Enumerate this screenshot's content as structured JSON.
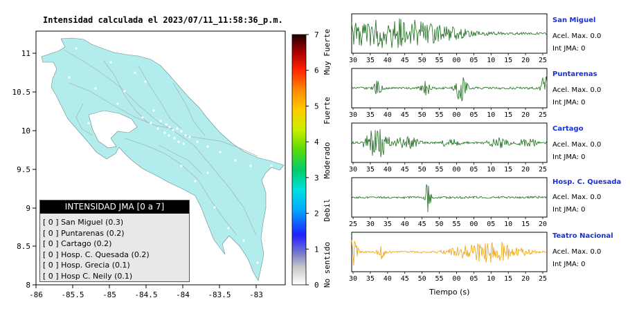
{
  "map": {
    "title": "Intensidad calculada el 2023/07/11_11:58:36_p.m.",
    "lon_ticks": [
      "-86",
      "-85.5",
      "-85",
      "-84.5",
      "-84",
      "-83.5",
      "-83"
    ],
    "lat_ticks": [
      "11",
      "10.5",
      "10",
      "9.5",
      "9",
      "8.5",
      "8"
    ],
    "land_color": "#b2ecec",
    "sea_color": "#ffffff"
  },
  "colorbar": {
    "ticks": [
      "0",
      "1",
      "2",
      "3",
      "4",
      "5",
      "6",
      "7"
    ],
    "categories": [
      "No sentido",
      "Debil",
      "Moderado",
      "Fuerte",
      "Muy Fuerte"
    ]
  },
  "legend": {
    "title": "INTENSIDAD JMA [0 a 7]",
    "items": [
      {
        "label": "[ 0 ]  San Miguel (0.3)"
      },
      {
        "label": "[ 0 ]  Puntarenas (0.2)"
      },
      {
        "label": "[ 0 ]  Cartago (0.2)"
      },
      {
        "label": "[ 0 ]  Hosp. C. Quesada (0.2)"
      },
      {
        "label": "[ 0 ]  Hosp. Grecia (0.1)"
      },
      {
        "label": "[ 0 ]  Hosp C. Neily (0.1)"
      }
    ]
  },
  "chart_data": [
    {
      "type": "heatmap",
      "title": "Intensidad calculada el 2023/07/11_11:58:36_p.m.",
      "xlabel": "",
      "ylabel": "",
      "xlim": [
        -86,
        -82.6
      ],
      "ylim": [
        8,
        11.3
      ],
      "colorbar": {
        "min": 0,
        "max": 7,
        "labels": [
          "No sentido",
          "Debil",
          "Moderado",
          "Fuerte",
          "Muy Fuerte"
        ]
      },
      "stations": [
        {
          "name": "San Miguel",
          "jma": 0,
          "intensity": 0.3
        },
        {
          "name": "Puntarenas",
          "jma": 0,
          "intensity": 0.2
        },
        {
          "name": "Cartago",
          "jma": 0,
          "intensity": 0.2
        },
        {
          "name": "Hosp. C. Quesada",
          "jma": 0,
          "intensity": 0.2
        },
        {
          "name": "Hosp. Grecia",
          "jma": 0,
          "intensity": 0.1
        },
        {
          "name": "Hosp C. Neily",
          "jma": 0,
          "intensity": 0.1
        }
      ]
    },
    {
      "type": "line",
      "xlabel": "Tiempo (s)",
      "series": [
        {
          "name": "San Miguel",
          "color": "#1a6b1a",
          "tick_labels": [
            "30",
            "35",
            "40",
            "45",
            "50",
            "55",
            "00",
            "05",
            "10",
            "15",
            "20",
            "25"
          ],
          "accel_label": "Acel. Max. 0.0",
          "int_label": "Int JMA: 0",
          "bursts": [
            [
              0.2,
              0.35,
              0.85
            ],
            [
              0.06,
              0.9,
              0.15
            ]
          ]
        },
        {
          "name": "Puntarenas",
          "color": "#1a6b1a",
          "tick_labels": [
            "30",
            "35",
            "40",
            "45",
            "50",
            "55",
            "00",
            "05",
            "10",
            "15",
            "20",
            "25"
          ],
          "accel_label": "Acel. Max. 0.0",
          "int_label": "Int JMA: 0",
          "bursts": [
            [
              0.13,
              0.03,
              0.45
            ],
            [
              0.38,
              0.03,
              0.4
            ],
            [
              0.56,
              0.03,
              0.9
            ],
            [
              0.99,
              0.02,
              0.8
            ]
          ]
        },
        {
          "name": "Cartago",
          "color": "#1a6b1a",
          "tick_labels": [
            "30",
            "35",
            "40",
            "45",
            "50",
            "55",
            "00",
            "05",
            "10",
            "15",
            "20",
            "25"
          ],
          "accel_label": "Acel. Max. 0.0",
          "int_label": "Int JMA: 0",
          "bursts": [
            [
              0.13,
              0.06,
              0.95
            ],
            [
              0.28,
              0.08,
              0.35
            ],
            [
              0.5,
              0.06,
              0.25
            ],
            [
              0.75,
              0.06,
              0.35
            ],
            [
              0.9,
              0.05,
              0.3
            ]
          ]
        },
        {
          "name": "Hosp. C. Quesada",
          "color": "#1a6b1a",
          "tick_labels": [
            "25",
            "30",
            "35",
            "40",
            "45",
            "50",
            "55",
            "00",
            "05",
            "10",
            "15",
            "20"
          ],
          "accel_label": "Acel. Max. 0.0",
          "int_label": "Int JMA: 0",
          "bursts": [
            [
              0.39,
              0.015,
              0.95
            ]
          ]
        },
        {
          "name": "Teatro Nacional",
          "color": "#f2a000",
          "tick_labels": [
            "30",
            "35",
            "40",
            "45",
            "50",
            "55",
            "00",
            "05",
            "10",
            "15",
            "20",
            "25"
          ],
          "accel_label": "Acel. Max. 0.0",
          "int_label": "Int JMA: 0",
          "bursts": [
            [
              0.01,
              0.02,
              0.85
            ],
            [
              0.15,
              0.02,
              0.45
            ],
            [
              0.7,
              0.18,
              0.6
            ]
          ]
        }
      ]
    }
  ]
}
